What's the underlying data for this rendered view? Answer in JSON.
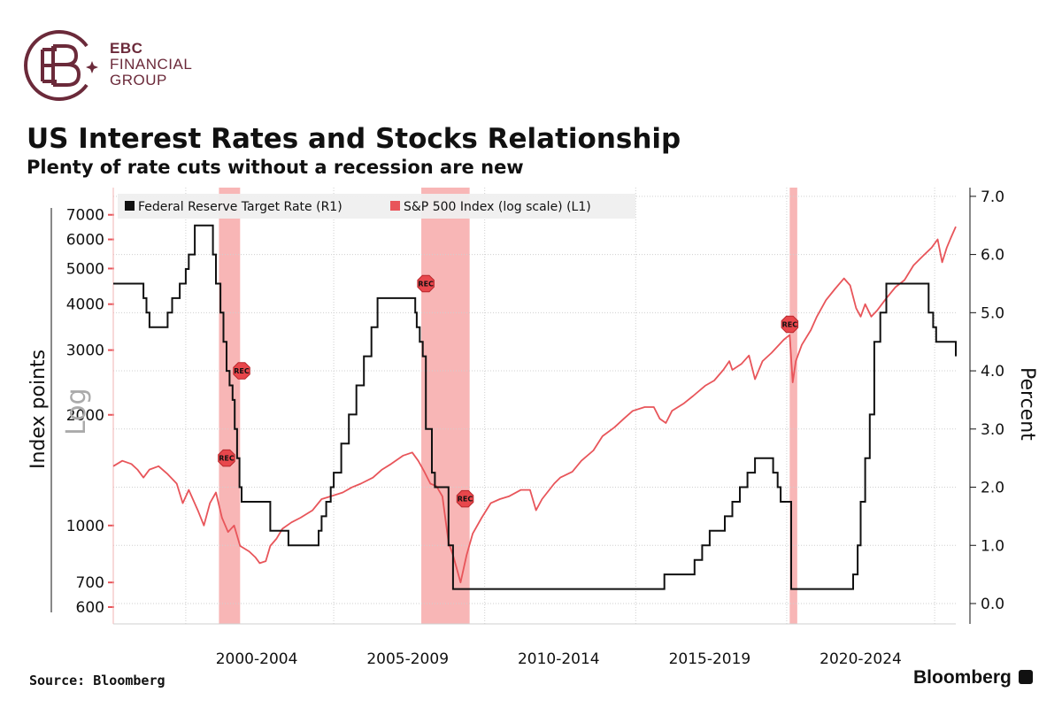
{
  "brand": {
    "logo_line1": "EBC",
    "logo_line2": "FINANCIAL",
    "logo_line3": "GROUP"
  },
  "title": "US Interest Rates and Stocks Relationship",
  "subtitle": "Plenty of rate cuts without a recession are new",
  "source": "Source: Bloomberg",
  "publisher": "Bloomberg",
  "colors": {
    "sp500": "#e8555a",
    "fed": "#111111",
    "recession": "#f7a9a9",
    "logo": "#6b2a3a"
  },
  "chart_data": {
    "type": "line",
    "legend": [
      "Federal Reserve Target Rate (R1)",
      "S&P 500 Index (log scale) (L1)"
    ],
    "legend_position": "top-left",
    "grid": true,
    "x_tick_labels": [
      "2000-2004",
      "2005-2009",
      "2010-2014",
      "2015-2019",
      "2020-2024"
    ],
    "xlim": [
      1997.7,
      2025.6
    ],
    "left_axis": {
      "label": "Index points",
      "scale_marker": "Log",
      "scale": "log",
      "ylim": [
        540,
        8300
      ],
      "ticks": [
        600,
        700,
        1000,
        2000,
        3000,
        4000,
        5000,
        6000,
        7000
      ]
    },
    "right_axis": {
      "label": "Percent",
      "ylim": [
        -0.35,
        7.15
      ],
      "ticks": [
        "0.0",
        "1.0",
        "2.0",
        "3.0",
        "4.0",
        "5.0",
        "6.0",
        "7.0"
      ]
    },
    "recessions": [
      [
        2001.2,
        2001.9
      ],
      [
        2007.9,
        2009.5
      ],
      [
        2020.1,
        2020.35
      ]
    ],
    "rec_label": "REC",
    "series": [
      {
        "name": "Federal Reserve Target Rate (R1)",
        "axis": "right",
        "x": [
          1997.7,
          1998.7,
          1998.8,
          1998.9,
          1999.5,
          1999.65,
          1999.9,
          2000.1,
          2000.2,
          2000.4,
          2000.9,
          2001.0,
          2001.1,
          2001.25,
          2001.35,
          2001.45,
          2001.55,
          2001.65,
          2001.72,
          2001.8,
          2001.88,
          2001.95,
          2002.9,
          2003.5,
          2004.5,
          2004.6,
          2004.75,
          2004.9,
          2005.0,
          2005.25,
          2005.5,
          2005.75,
          2006.0,
          2006.25,
          2006.45,
          2007.7,
          2007.75,
          2007.85,
          2007.95,
          2008.05,
          2008.25,
          2008.35,
          2008.8,
          2008.95,
          2015.95,
          2016.95,
          2017.2,
          2017.45,
          2017.95,
          2018.2,
          2018.45,
          2018.7,
          2018.95,
          2019.55,
          2019.7,
          2019.8,
          2020.15,
          2020.25,
          2022.2,
          2022.35,
          2022.45,
          2022.6,
          2022.75,
          2022.9,
          2023.1,
          2023.3,
          2023.55,
          2024.7,
          2024.85,
          2024.95,
          2025.6
        ],
        "values": [
          5.5,
          5.25,
          5.0,
          4.75,
          5.0,
          5.25,
          5.5,
          5.75,
          6.0,
          6.5,
          6.5,
          6.0,
          5.5,
          5.0,
          4.5,
          4.0,
          3.75,
          3.5,
          3.0,
          2.5,
          2.0,
          1.75,
          1.25,
          1.0,
          1.25,
          1.5,
          1.75,
          2.0,
          2.25,
          2.75,
          3.25,
          3.75,
          4.25,
          4.75,
          5.25,
          5.0,
          4.75,
          4.5,
          4.25,
          3.0,
          2.25,
          2.0,
          1.0,
          0.25,
          0.5,
          0.75,
          1.0,
          1.25,
          1.5,
          1.75,
          2.0,
          2.25,
          2.5,
          2.25,
          2.0,
          1.75,
          0.25,
          0.25,
          0.5,
          1.0,
          1.75,
          2.5,
          3.25,
          4.5,
          5.0,
          5.5,
          5.5,
          5.0,
          4.75,
          4.5,
          4.25
        ]
      },
      {
        "name": "S&P 500 Index (log scale) (L1)",
        "axis": "left",
        "x": [
          1997.7,
          1998.0,
          1998.3,
          1998.5,
          1998.7,
          1998.9,
          1999.2,
          1999.5,
          1999.8,
          2000.0,
          2000.2,
          2000.5,
          2000.7,
          2000.9,
          2001.1,
          2001.3,
          2001.5,
          2001.7,
          2001.9,
          2002.2,
          2002.4,
          2002.55,
          2002.75,
          2002.9,
          2003.1,
          2003.3,
          2003.6,
          2003.9,
          2004.3,
          2004.6,
          2004.9,
          2005.3,
          2005.6,
          2005.9,
          2006.3,
          2006.6,
          2006.9,
          2007.3,
          2007.6,
          2007.8,
          2008.0,
          2008.2,
          2008.4,
          2008.6,
          2008.8,
          2008.95,
          2009.1,
          2009.2,
          2009.4,
          2009.6,
          2009.9,
          2010.2,
          2010.5,
          2010.8,
          2011.2,
          2011.5,
          2011.7,
          2011.9,
          2012.3,
          2012.5,
          2012.9,
          2013.2,
          2013.6,
          2013.9,
          2014.3,
          2014.6,
          2014.9,
          2015.3,
          2015.6,
          2015.8,
          2016.0,
          2016.2,
          2016.6,
          2016.9,
          2017.3,
          2017.6,
          2017.9,
          2018.1,
          2018.2,
          2018.5,
          2018.75,
          2018.95,
          2019.2,
          2019.5,
          2019.9,
          2020.1,
          2020.2,
          2020.3,
          2020.5,
          2020.8,
          2021.0,
          2021.3,
          2021.6,
          2021.9,
          2022.1,
          2022.3,
          2022.45,
          2022.6,
          2022.8,
          2023.0,
          2023.3,
          2023.6,
          2023.9,
          2024.2,
          2024.5,
          2024.8,
          2025.0,
          2025.15,
          2025.3,
          2025.45,
          2025.6
        ],
        "values": [
          1450,
          1500,
          1470,
          1420,
          1350,
          1420,
          1450,
          1380,
          1300,
          1150,
          1250,
          1100,
          1000,
          1150,
          1230,
          1050,
          960,
          1000,
          880,
          850,
          820,
          790,
          800,
          880,
          920,
          980,
          1020,
          1050,
          1100,
          1180,
          1200,
          1230,
          1270,
          1300,
          1350,
          1420,
          1470,
          1550,
          1580,
          1500,
          1400,
          1300,
          1280,
          1200,
          900,
          830,
          750,
          700,
          830,
          950,
          1050,
          1150,
          1180,
          1200,
          1250,
          1250,
          1100,
          1180,
          1300,
          1350,
          1400,
          1500,
          1600,
          1750,
          1850,
          1950,
          2050,
          2100,
          2100,
          1950,
          1900,
          2050,
          2150,
          2250,
          2400,
          2480,
          2650,
          2800,
          2650,
          2750,
          2900,
          2500,
          2800,
          2950,
          3200,
          3300,
          2450,
          2800,
          3100,
          3400,
          3700,
          4100,
          4400,
          4700,
          4500,
          3900,
          3700,
          4000,
          3700,
          3850,
          4150,
          4450,
          4650,
          5100,
          5400,
          5700,
          6000,
          5200,
          5700,
          6100,
          6500
        ]
      }
    ],
    "rec_markers": [
      {
        "x": 2001.95,
        "y_percent": 4.0
      },
      {
        "x": 2001.45,
        "y_percent": 2.5
      },
      {
        "x": 2008.05,
        "y_percent": 5.5
      },
      {
        "x": 2009.35,
        "y_percent": 1.8
      },
      {
        "x": 2020.1,
        "y_percent": 4.8
      }
    ]
  }
}
